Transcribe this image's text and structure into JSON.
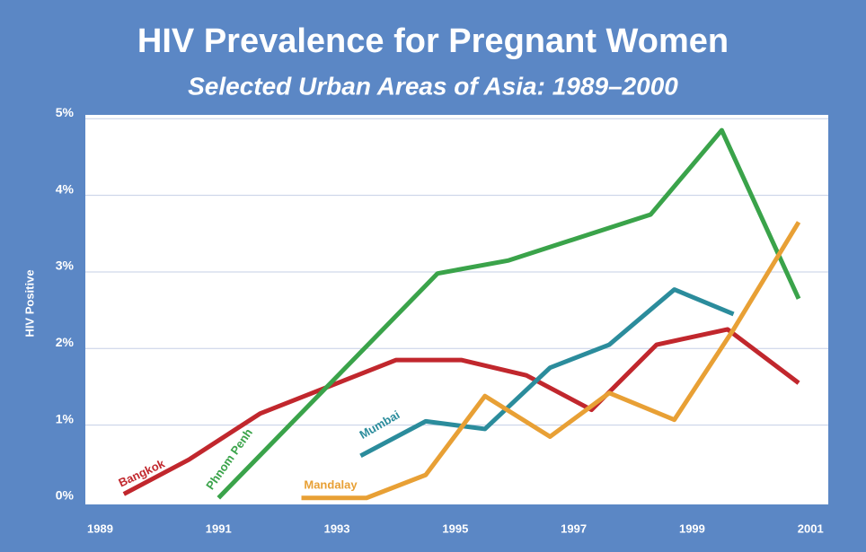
{
  "chart_data": {
    "type": "line",
    "title": "HIV Prevalence for Pregnant Women",
    "subtitle": "Selected Urban Areas of Asia:  1989–2000",
    "y_label": "HIV Positive",
    "xlim": [
      1988.75,
      2001.3
    ],
    "xticks": [
      1989,
      1991,
      1993,
      1995,
      1997,
      1999,
      2001
    ],
    "ylim": [
      0,
      5.05
    ],
    "yticks": [
      {
        "value": 0,
        "label": "0%"
      },
      {
        "value": 1,
        "label": "1%"
      },
      {
        "value": 2,
        "label": "2%"
      },
      {
        "value": 3,
        "label": "3%"
      },
      {
        "value": 4,
        "label": "4%"
      },
      {
        "value": 5,
        "label": "5%"
      }
    ],
    "grid": true,
    "series": [
      {
        "name": "Bangkok",
        "color": "#c1272d",
        "x": [
          1989.4,
          1990.5,
          1991.7,
          1994.0,
          1995.1,
          1996.2,
          1997.3,
          1998.4,
          1999.6,
          2000.8
        ],
        "values": [
          0.1,
          0.55,
          1.15,
          1.85,
          1.85,
          1.65,
          1.2,
          2.05,
          2.25,
          1.55
        ]
      },
      {
        "name": "Phnom Penh",
        "color": "#3aa34a",
        "x": [
          1991.0,
          1994.7,
          1995.9,
          1998.3,
          1999.5,
          2000.8
        ],
        "values": [
          0.05,
          2.98,
          3.15,
          3.75,
          4.85,
          2.65
        ]
      },
      {
        "name": "Mumbai",
        "color": "#2b8c9c",
        "x": [
          1993.4,
          1994.5,
          1995.5,
          1996.6,
          1997.6,
          1998.7,
          1999.7
        ],
        "values": [
          0.6,
          1.05,
          0.95,
          1.75,
          2.05,
          2.77,
          2.45
        ]
      },
      {
        "name": "Mandalay",
        "color": "#e8a035",
        "x": [
          1992.4,
          1993.5,
          1994.5,
          1995.5,
          1996.6,
          1997.6,
          1998.7,
          1999.7,
          2000.8
        ],
        "values": [
          0.05,
          0.05,
          0.35,
          1.38,
          0.85,
          1.42,
          1.07,
          2.25,
          3.65
        ]
      }
    ]
  }
}
